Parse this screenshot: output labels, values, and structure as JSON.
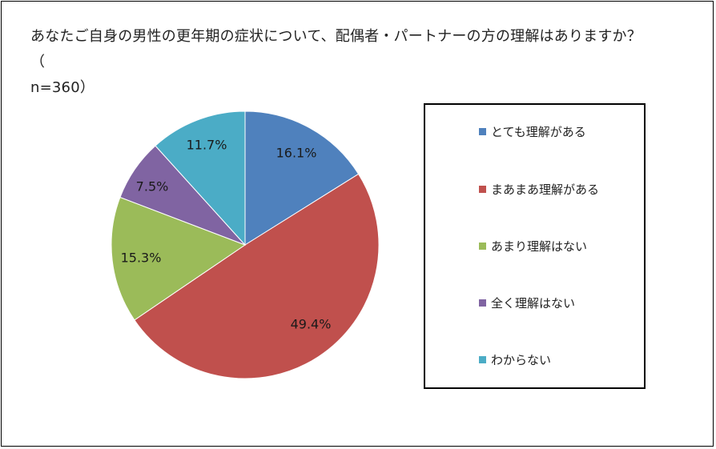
{
  "title": "あなたご自身の男性の更年期の症状について、配偶者・パートナーの方の理解はありますか？（",
  "subtitle": "n=360）",
  "chart_data": {
    "type": "pie",
    "categories": [
      "とても理解がある",
      "まあまあ理解がある",
      "あまり理解はない",
      "全く理解はない",
      "わからない"
    ],
    "values": [
      16.1,
      49.4,
      15.3,
      7.5,
      11.7
    ],
    "value_labels": [
      "16.1%",
      "49.4%",
      "15.3%",
      "7.5%",
      "11.7%"
    ],
    "colors": [
      "#4f81bd",
      "#c0504d",
      "#9bbb59",
      "#8064a2",
      "#4bacc6"
    ],
    "legend_position": "right",
    "start_angle": "12 o'clock",
    "direction": "clockwise"
  }
}
